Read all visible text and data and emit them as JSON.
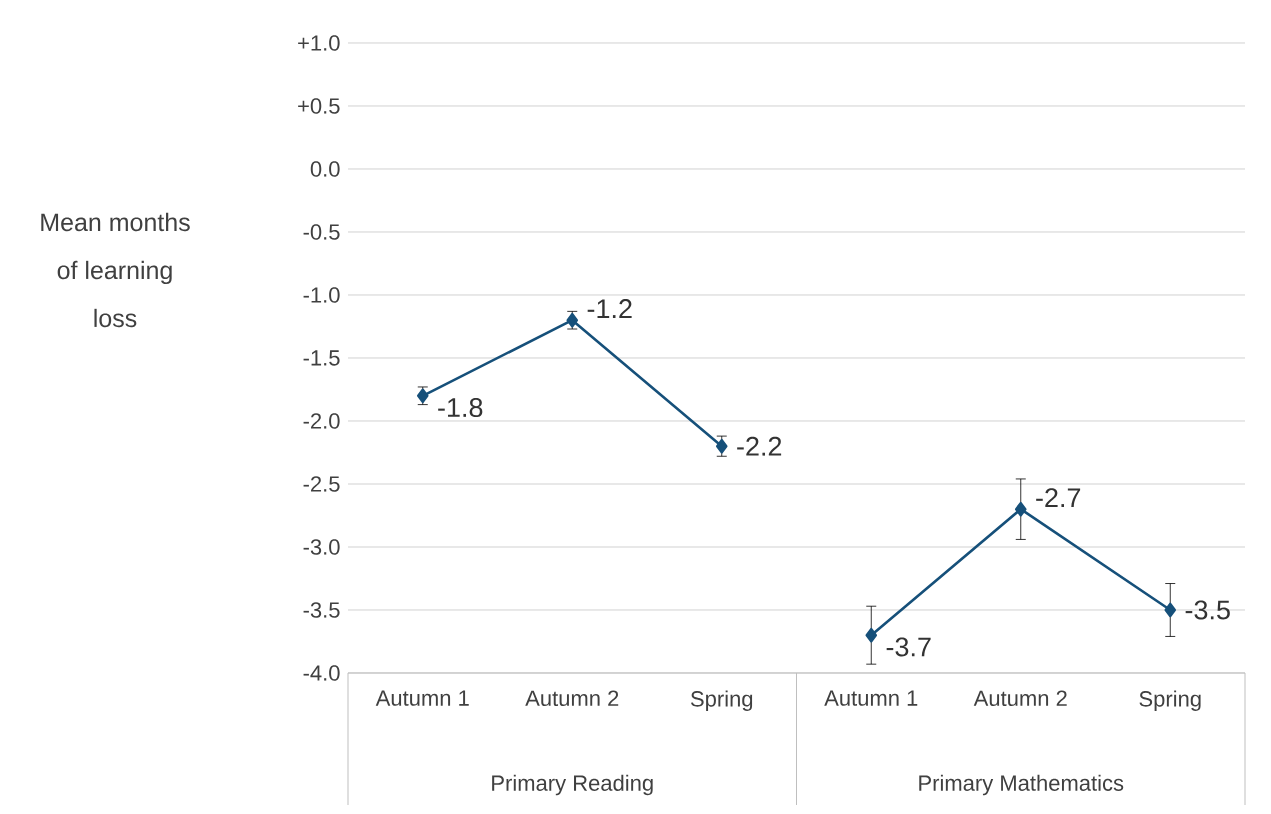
{
  "chart_data": {
    "type": "line",
    "ylabel": "Mean months of learning loss",
    "categories": [
      "Autumn 1",
      "Autumn 2",
      "Spring",
      "Autumn 1",
      "Autumn 2",
      "Spring"
    ],
    "series": [
      {
        "color": "#16507a",
        "values": [
          -1.8,
          -1.2,
          -2.2,
          null,
          null,
          null
        ],
        "errors": [
          0.07,
          0.07,
          0.08,
          null,
          null,
          null
        ],
        "value_labels": [
          "-1.8",
          "-1.2",
          "-2.2",
          null,
          null,
          null
        ]
      },
      {
        "color": "#16507a",
        "values": [
          null,
          null,
          null,
          -3.7,
          -2.7,
          -3.5
        ],
        "errors": [
          null,
          null,
          null,
          0.23,
          0.24,
          0.21
        ],
        "value_labels": [
          null,
          null,
          null,
          "-3.7",
          "-2.7",
          "-3.5"
        ]
      }
    ],
    "annotations": [
      "Primary Reading",
      "Primary Mathematics"
    ],
    "ylim": [
      -4.0,
      1.0
    ],
    "yticks": [
      {
        "value": 1.0,
        "label": "+1.0"
      },
      {
        "value": 0.5,
        "label": "+0.5"
      },
      {
        "value": 0.0,
        "label": "0.0"
      },
      {
        "value": -0.5,
        "label": "-0.5"
      },
      {
        "value": -1.0,
        "label": "-1.0"
      },
      {
        "value": -1.5,
        "label": "-1.5"
      },
      {
        "value": -2.0,
        "label": "-2.0"
      },
      {
        "value": -2.5,
        "label": "-2.5"
      },
      {
        "value": -3.0,
        "label": "-3.0"
      },
      {
        "value": -3.5,
        "label": "-3.5"
      },
      {
        "value": -4.0,
        "label": "-4.0"
      }
    ],
    "grid": "y",
    "marker": "diamond",
    "line_style": "solid"
  }
}
